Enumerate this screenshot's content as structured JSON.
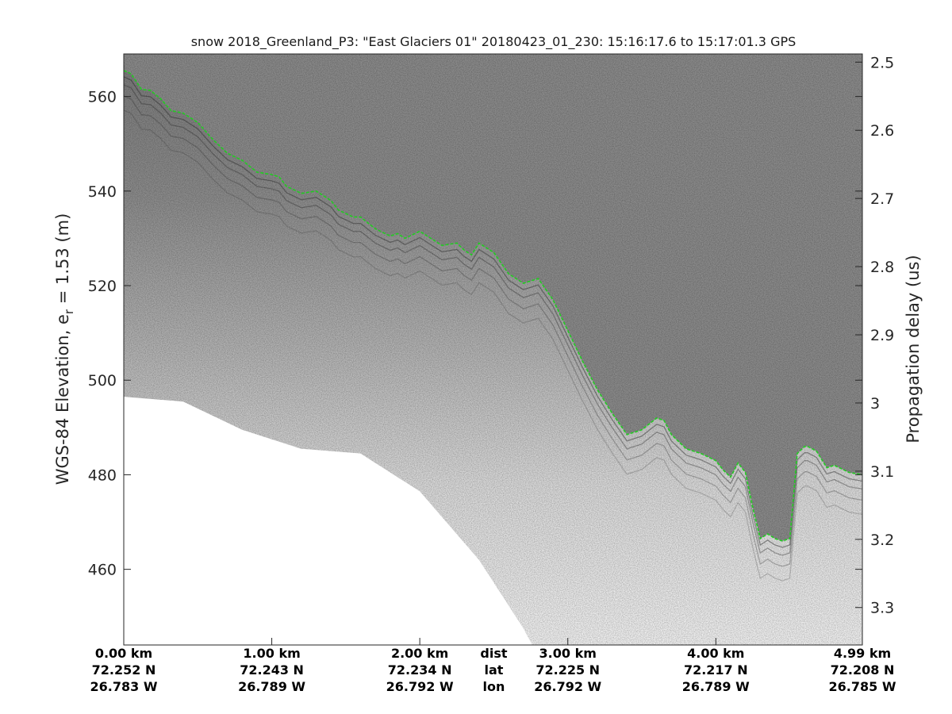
{
  "chart_data": {
    "type": "radargram",
    "title": "snow 2018_Greenland_P3: \"East Glaciers 01\"  20180423_01_230: 15:16:17.6 to 15:17:01.3 GPS",
    "ylabel_left": "WGS-84 Elevation, e",
    "ylabel_left_sub": "r",
    "ylabel_left_suffix": " = 1.53 (m)",
    "ylabel_right": "Propagation delay (us)",
    "ylim_left": [
      444,
      569
    ],
    "yticks_left": [
      460,
      480,
      500,
      520,
      540,
      560
    ],
    "ylim_right": [
      2.488,
      3.355
    ],
    "yticks_right": [
      "2.5",
      "2.6",
      "2.7",
      "2.8",
      "2.9",
      "3",
      "3.1",
      "3.2",
      "3.3"
    ],
    "xlim_km": [
      0,
      4.99
    ],
    "colormap": "grayscale",
    "surface_line_color": "#22cc22",
    "surface_trace": {
      "x_km": [
        0.0,
        0.05,
        0.12,
        0.18,
        0.25,
        0.32,
        0.4,
        0.5,
        0.6,
        0.7,
        0.8,
        0.9,
        1.0,
        1.05,
        1.1,
        1.2,
        1.3,
        1.4,
        1.45,
        1.55,
        1.6,
        1.7,
        1.8,
        1.85,
        1.9,
        2.0,
        2.05,
        2.15,
        2.25,
        2.3,
        2.35,
        2.4,
        2.5,
        2.6,
        2.7,
        2.75,
        2.8,
        2.9,
        3.0,
        3.1,
        3.2,
        3.3,
        3.4,
        3.5,
        3.6,
        3.65,
        3.7,
        3.8,
        3.9,
        4.0,
        4.05,
        4.1,
        4.15,
        4.2,
        4.25,
        4.3,
        4.35,
        4.4,
        4.45,
        4.5,
        4.55,
        4.6,
        4.62,
        4.68,
        4.75,
        4.8,
        4.9,
        4.99
      ],
      "elev_m": [
        565.5,
        564.8,
        561.5,
        561.3,
        559.5,
        557.0,
        556.5,
        554.5,
        551.0,
        548.0,
        546.5,
        544.0,
        543.5,
        543.0,
        541.0,
        539.5,
        540.0,
        538.0,
        536.0,
        534.5,
        534.5,
        532.0,
        530.5,
        531.0,
        530.0,
        531.5,
        530.5,
        528.5,
        529.0,
        527.5,
        526.5,
        529.0,
        527.0,
        522.5,
        520.5,
        521.0,
        521.5,
        517.0,
        510.5,
        504.0,
        498.0,
        493.0,
        488.5,
        489.5,
        492.0,
        491.5,
        488.5,
        485.5,
        484.5,
        483.0,
        481.0,
        479.5,
        482.5,
        480.5,
        473.0,
        466.5,
        467.5,
        466.5,
        466.0,
        466.5,
        484.5,
        486.0,
        486.0,
        485.0,
        481.5,
        482.0,
        480.5,
        480.0
      ]
    },
    "no_data_boundary": {
      "x_km": [
        0.0,
        0.4,
        0.8,
        1.2,
        1.6,
        2.0,
        2.4,
        2.7,
        2.76
      ],
      "elev_m": [
        496.5,
        495.5,
        489.5,
        485.5,
        484.5,
        476.5,
        462.0,
        447.5,
        444.0
      ]
    },
    "bottom_labels": {
      "row_names": [
        "dist",
        "lat",
        "lon"
      ],
      "columns": [
        {
          "dist": "0.00 km",
          "lat": "72.252 N",
          "lon": "26.783 W"
        },
        {
          "dist": "1.00 km",
          "lat": "72.243 N",
          "lon": "26.789 W"
        },
        {
          "dist": "2.00 km",
          "lat": "72.234 N",
          "lon": "26.792 W"
        },
        {
          "dist": "3.00 km",
          "lat": "72.225 N",
          "lon": "26.792 W"
        },
        {
          "dist": "4.00 km",
          "lat": "72.217 N",
          "lon": "26.789 W"
        },
        {
          "dist": "4.99 km",
          "lat": "72.208 N",
          "lon": "26.785 W"
        }
      ]
    }
  }
}
